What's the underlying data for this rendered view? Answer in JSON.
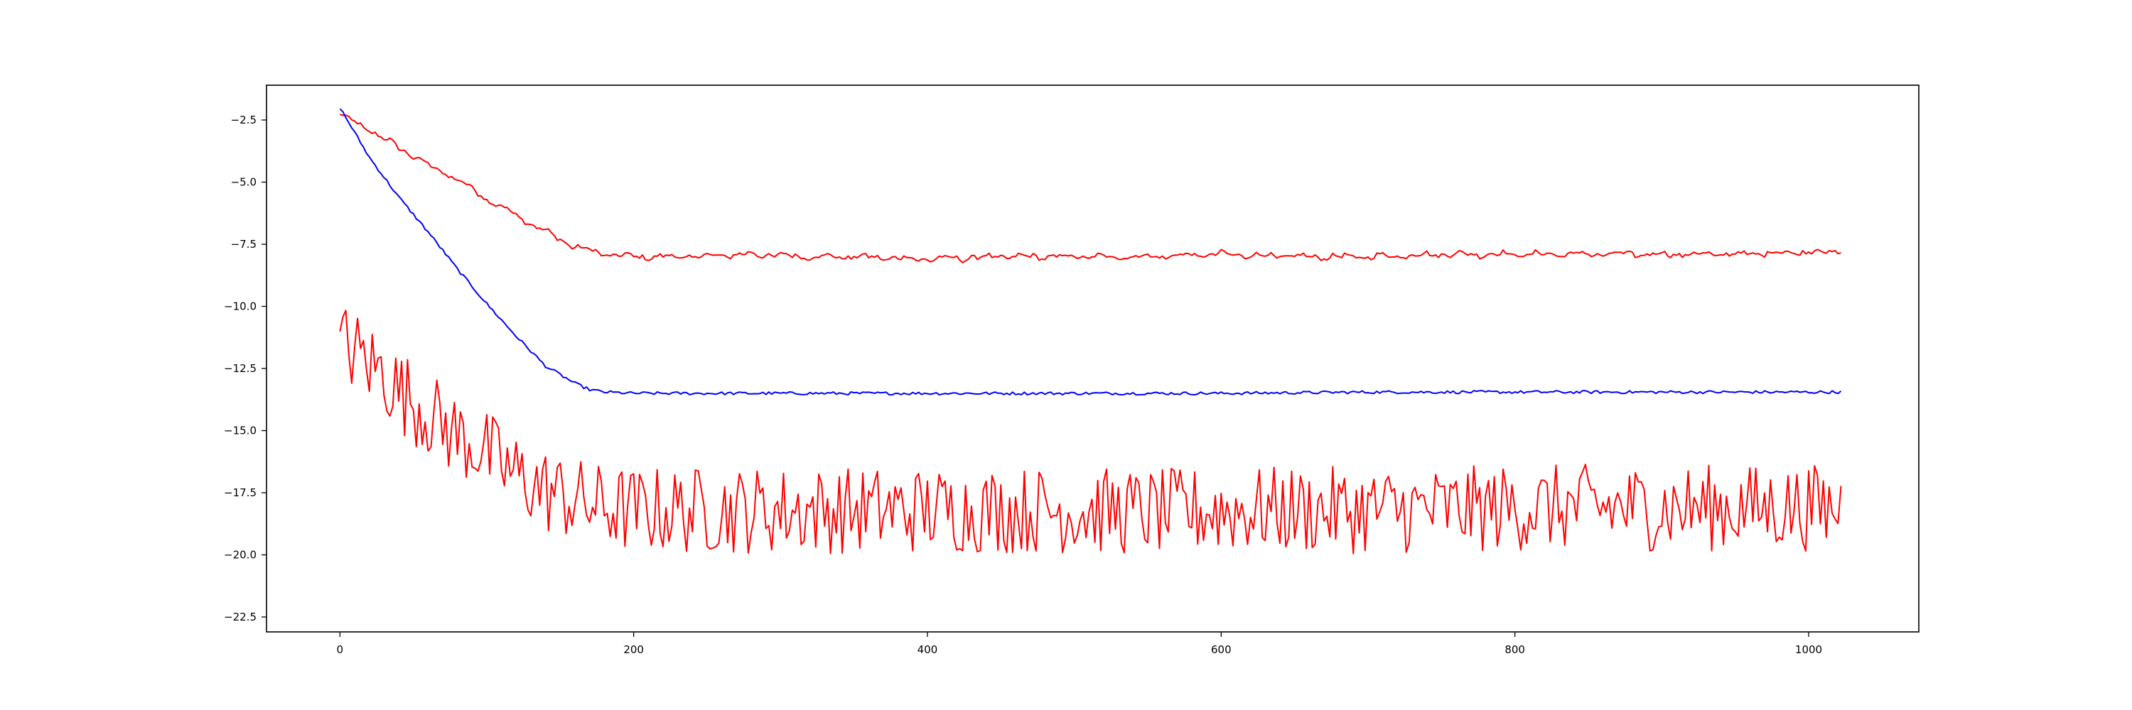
{
  "chart_data": {
    "type": "line",
    "title": "",
    "xlabel": "",
    "ylabel": "",
    "xlim": [
      -50,
      1075
    ],
    "ylim": [
      -23.1,
      -1.1
    ],
    "grid": false,
    "legend": "none",
    "xticks": [
      0,
      200,
      400,
      600,
      800,
      1000
    ],
    "xtick_labels": [
      "0",
      "200",
      "400",
      "600",
      "800",
      "1000"
    ],
    "yticks": [
      -2.5,
      -5.0,
      -7.5,
      -10.0,
      -12.5,
      -15.0,
      -17.5,
      -20.0,
      -22.5
    ],
    "ytick_labels": [
      "−2.5",
      "−5.0",
      "−7.5",
      "−10.0",
      "−12.5",
      "−15.0",
      "−17.5",
      "−20.0",
      "−22.5"
    ],
    "series": [
      {
        "color": "#ff0000",
        "x": [
          0,
          20,
          40,
          60,
          80,
          100,
          120,
          140,
          160,
          180,
          200,
          240,
          280,
          320,
          350,
          400,
          450,
          500,
          550,
          600,
          650,
          700,
          750,
          800,
          850,
          900,
          950,
          1000,
          1022
        ],
        "values": [
          -2.3,
          -2.9,
          -3.6,
          -4.3,
          -4.9,
          -5.7,
          -6.3,
          -7.0,
          -7.6,
          -7.9,
          -8.0,
          -8.0,
          -7.9,
          -8.0,
          -8.0,
          -8.1,
          -8.0,
          -8.0,
          -8.0,
          -7.9,
          -8.0,
          -8.0,
          -7.9,
          -7.9,
          -7.9,
          -7.9,
          -7.9,
          -7.8,
          -7.8
        ]
      },
      {
        "color": "#0000ff",
        "x": [
          0,
          10,
          20,
          40,
          60,
          80,
          100,
          120,
          140,
          160,
          170,
          180,
          200,
          250,
          300,
          400,
          500,
          600,
          700,
          800,
          900,
          1000,
          1022
        ],
        "values": [
          -2.0,
          -3.0,
          -4.0,
          -5.6,
          -7.0,
          -8.5,
          -9.9,
          -11.2,
          -12.4,
          -13.1,
          -13.35,
          -13.45,
          -13.5,
          -13.5,
          -13.5,
          -13.5,
          -13.5,
          -13.5,
          -13.45,
          -13.45,
          -13.45,
          -13.45,
          -13.45
        ]
      },
      {
        "color": "#ff0000",
        "x": [
          0,
          10,
          20,
          30,
          40,
          50,
          60,
          70,
          80,
          90,
          100,
          110,
          120,
          130,
          140,
          150,
          160,
          170,
          180,
          200,
          250,
          300,
          350,
          400,
          450,
          500,
          550,
          600,
          650,
          700,
          750,
          800,
          850,
          900,
          950,
          1000,
          1022
        ],
        "values": [
          -11.5,
          -11.8,
          -12.3,
          -12.7,
          -13.4,
          -13.8,
          -14.3,
          -14.8,
          -15.2,
          -15.5,
          -15.9,
          -16.4,
          -16.8,
          -17.1,
          -17.4,
          -17.6,
          -17.8,
          -18.0,
          -18.1,
          -18.2,
          -18.2,
          -18.2,
          -18.2,
          -18.2,
          -18.2,
          -18.2,
          -18.3,
          -18.2,
          -18.2,
          -18.2,
          -18.2,
          -18.1,
          -18.1,
          -18.1,
          -18.1,
          -18.1,
          -18.1
        ],
        "fluctuation_amplitude": 1.35
      }
    ]
  }
}
